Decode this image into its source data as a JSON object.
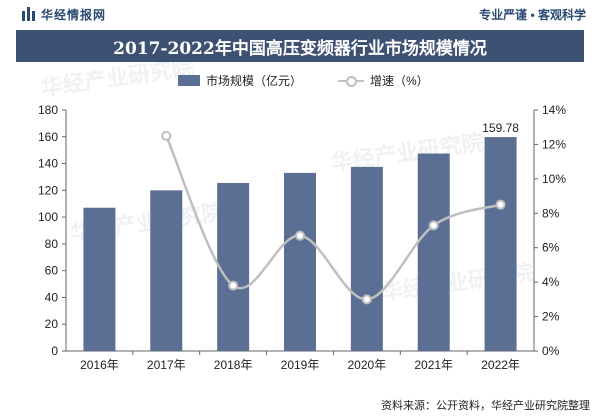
{
  "header": {
    "brand_name": "华经情报网",
    "slogan": "专业严谨 • 客观科学"
  },
  "watermark": "华经产业研究院",
  "footer": {
    "source": "资料来源：公开资料，华经产业研究院整理"
  },
  "colors": {
    "title_bg": "#3d5272",
    "bar": "#5b6f95",
    "line": "#bfbfbf",
    "brand": "#2b4a73"
  },
  "chart_data": {
    "type": "bar",
    "title": "2017-2022年中国高压变频器行业市场规模情况",
    "categories": [
      "2016年",
      "2017年",
      "2018年",
      "2019年",
      "2020年",
      "2021年",
      "2022年"
    ],
    "series": [
      {
        "name": "市场规模（亿元）",
        "type": "bar",
        "axis": "left",
        "values": [
          107,
          120,
          125.5,
          133,
          137.5,
          147.5,
          159.78
        ],
        "labels": [
          null,
          null,
          null,
          null,
          null,
          null,
          "159.78"
        ]
      },
      {
        "name": "增速（%）",
        "type": "line",
        "axis": "right",
        "values": [
          null,
          12.5,
          3.8,
          6.7,
          3.0,
          7.3,
          8.5
        ]
      }
    ],
    "y_left": {
      "min": 0,
      "max": 180,
      "step": 20,
      "ticks": [
        "0",
        "20",
        "40",
        "60",
        "80",
        "100",
        "120",
        "140",
        "160",
        "180"
      ]
    },
    "y_right": {
      "min": 0,
      "max": 14,
      "step": 2,
      "ticks": [
        "0%",
        "2%",
        "4%",
        "6%",
        "8%",
        "10%",
        "12%",
        "14%"
      ]
    },
    "grid": false,
    "legend_position": "top-center"
  }
}
